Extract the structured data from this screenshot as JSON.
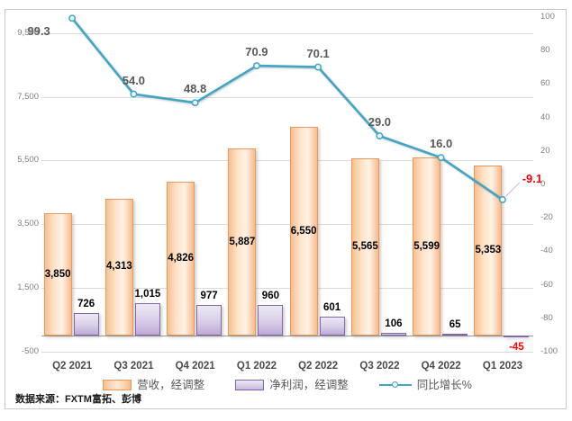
{
  "source_note": "数据来源：FXTM富拓、彭博",
  "colors": {
    "revenue_fill": "#FAC090",
    "revenue_border": "#E8995C",
    "profit_fill": "#C9B8DF",
    "profit_border": "#8368A8",
    "growth_line": "#41A5C4",
    "negative_label": "#FF0000",
    "gridline": "#DCDCDC",
    "axis_text": "#7F7F7F"
  },
  "chart_data": {
    "type": "bar",
    "subtype": "combo-bar-line",
    "categories": [
      "Q2 2021",
      "Q3 2021",
      "Q4 2021",
      "Q1 2022",
      "Q2 2022",
      "Q3 2022",
      "Q4 2022",
      "Q1 2023"
    ],
    "series": [
      {
        "name": "营收，经调整",
        "type": "bar",
        "axis": "left",
        "values": [
          3850,
          4313,
          4826,
          5887,
          6550,
          5565,
          5599,
          5353
        ],
        "labels": [
          "3,850",
          "4,313",
          "4,826",
          "5,887",
          "6,550",
          "5,565",
          "5,599",
          "5,353"
        ]
      },
      {
        "name": "净利润，经调整",
        "type": "bar",
        "axis": "left",
        "values": [
          726,
          1015,
          977,
          960,
          601,
          106,
          65,
          -45
        ],
        "labels": [
          "726",
          "1,015",
          "977",
          "960",
          "601",
          "106",
          "65",
          "-45"
        ]
      },
      {
        "name": "同比增长%",
        "type": "line",
        "axis": "right",
        "values": [
          99.3,
          54.0,
          48.8,
          70.9,
          70.1,
          29.0,
          16.0,
          -9.1
        ],
        "labels": [
          "99.3",
          "54.0",
          "48.8",
          "70.9",
          "70.1",
          "29.0",
          "16.0",
          "-9.1"
        ]
      }
    ],
    "left_axis": {
      "min": -500,
      "max": 10000,
      "ticks": [
        9500,
        7500,
        5500,
        3500,
        1500,
        -500
      ],
      "tick_labels": [
        "9,500",
        "7,500",
        "5,500",
        "3,500",
        "1,500",
        "-500"
      ]
    },
    "right_axis": {
      "min": -100,
      "max": 100,
      "ticks": [
        100,
        80,
        60,
        40,
        20,
        0,
        -20,
        -40,
        -60,
        -80,
        -100
      ],
      "tick_labels": [
        "100",
        "80",
        "60",
        "40",
        "20",
        "0",
        "-20",
        "-40",
        "-60",
        "-80",
        "-100"
      ]
    },
    "grid": true,
    "legend_position": "bottom"
  }
}
